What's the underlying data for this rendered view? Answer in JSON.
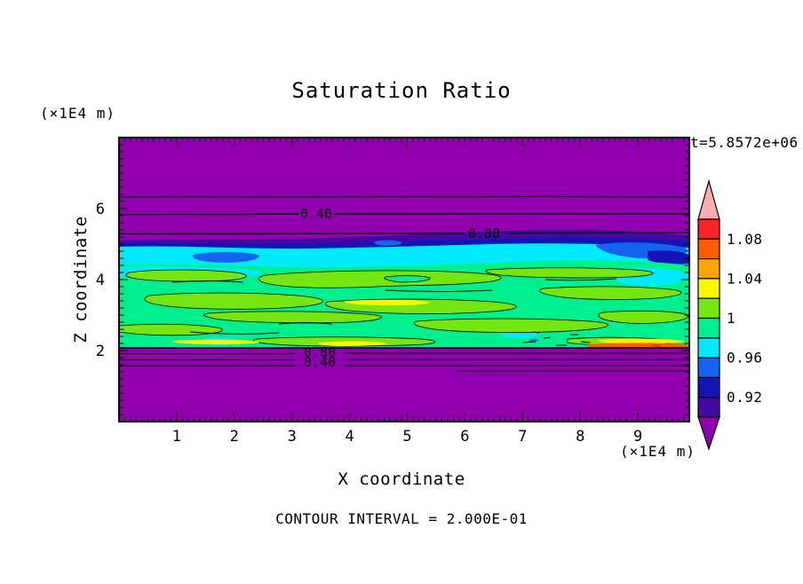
{
  "title": "Saturation Ratio",
  "time_label": "t=5.8572e+06",
  "x_axis": {
    "label": "X coordinate",
    "unit": "(×1E4 m)",
    "tick_labels": [
      "1",
      "2",
      "3",
      "4",
      "5",
      "6",
      "7",
      "8",
      "9"
    ]
  },
  "y_axis": {
    "label": "Z coordinate",
    "unit": "(×1E4 m)",
    "tick_labels": [
      "6",
      "4",
      "2"
    ]
  },
  "footer": "CONTOUR INTERVAL = 2.000E-01",
  "contour_labels": {
    "upper_040": "0.40",
    "upper_080": "0.80",
    "lower_080": "0.80",
    "lower_040": "0.40"
  },
  "colorbar": {
    "tick_labels": [
      "1.08",
      "1.04",
      "1",
      "0.96",
      "0.92"
    ],
    "segments_top_to_bottom": [
      "#F92525",
      "#FB5C00",
      "#FCA405",
      "#FAF700",
      "#76E613",
      "#00EF8E",
      "#00E9FD",
      "#1464F0",
      "#1414B4",
      "#4408A0"
    ],
    "arrow_top_color": "#FFAEB4",
    "arrow_bottom_color": "#9000AE"
  },
  "palette": {
    "background_field": "#9000AE",
    "indigo_band": "#4408A0",
    "navy_band": "#1414B4",
    "blue_patch": "#1464F0",
    "cyan_band": "#00E9FD",
    "green_band": "#00EF8E",
    "chartreuse_lens": "#76E613",
    "yellow_streak": "#FAF700",
    "orange_streak": "#FB5C00",
    "red_speck": "#F92525"
  },
  "chart_data": {
    "type": "heatmap",
    "title": "Saturation Ratio",
    "xlabel": "X coordinate (×1E4 m)",
    "ylabel": "Z coordinate (×1E4 m)",
    "xlim": [
      0,
      9.9
    ],
    "ylim": [
      0,
      8
    ],
    "x_ticks": [
      1,
      2,
      3,
      4,
      5,
      6,
      7,
      8,
      9
    ],
    "y_ticks": [
      2,
      4,
      6
    ],
    "time": "t=5.8572e+06",
    "contour_interval": 0.2,
    "labeled_line_contours": [
      0.4,
      0.8
    ],
    "line_contour_z_positions": {
      "upper_0.2": 6.3,
      "upper_0.4": 5.85,
      "upper_0.8": 5.3,
      "lower_0.8": 1.95,
      "lower_0.6": 1.8,
      "lower_0.4": 1.6,
      "lower_0.2": 1.45
    },
    "colorbar_boundaries": [
      0.9,
      0.92,
      0.94,
      0.96,
      0.98,
      1.0,
      1.02,
      1.04,
      1.06,
      1.08,
      1.1
    ],
    "colorbar_labeled_values": [
      1.08,
      1.04,
      1,
      0.96,
      0.92
    ],
    "field_regions": [
      {
        "region": "z > ~5.2 ×1E4 m (top) and z < ~2.0 ×1E4 m (bottom)",
        "saturation_ratio": "< 0.90 (below-scale purple); thin line contours 0.2–0.8 mark the transition"
      },
      {
        "region": "z ≈ 4.8–5.2 ×1E4 m",
        "saturation_ratio": "0.90–0.98 (indigo / navy / blue / cyan horizontal bands)"
      },
      {
        "region": "z ≈ 2.0–4.9 ×1E4 m (main band, full x extent)",
        "saturation_ratio": "≈ 0.98–1.02 spring green with elongated 1.00–1.02 chartreuse lenses; yellow/orange streaks up to ≈1.04–1.08 near z≈2"
      }
    ],
    "legend_position": "right colorbar with out-of-range arrows",
    "grid": false
  }
}
